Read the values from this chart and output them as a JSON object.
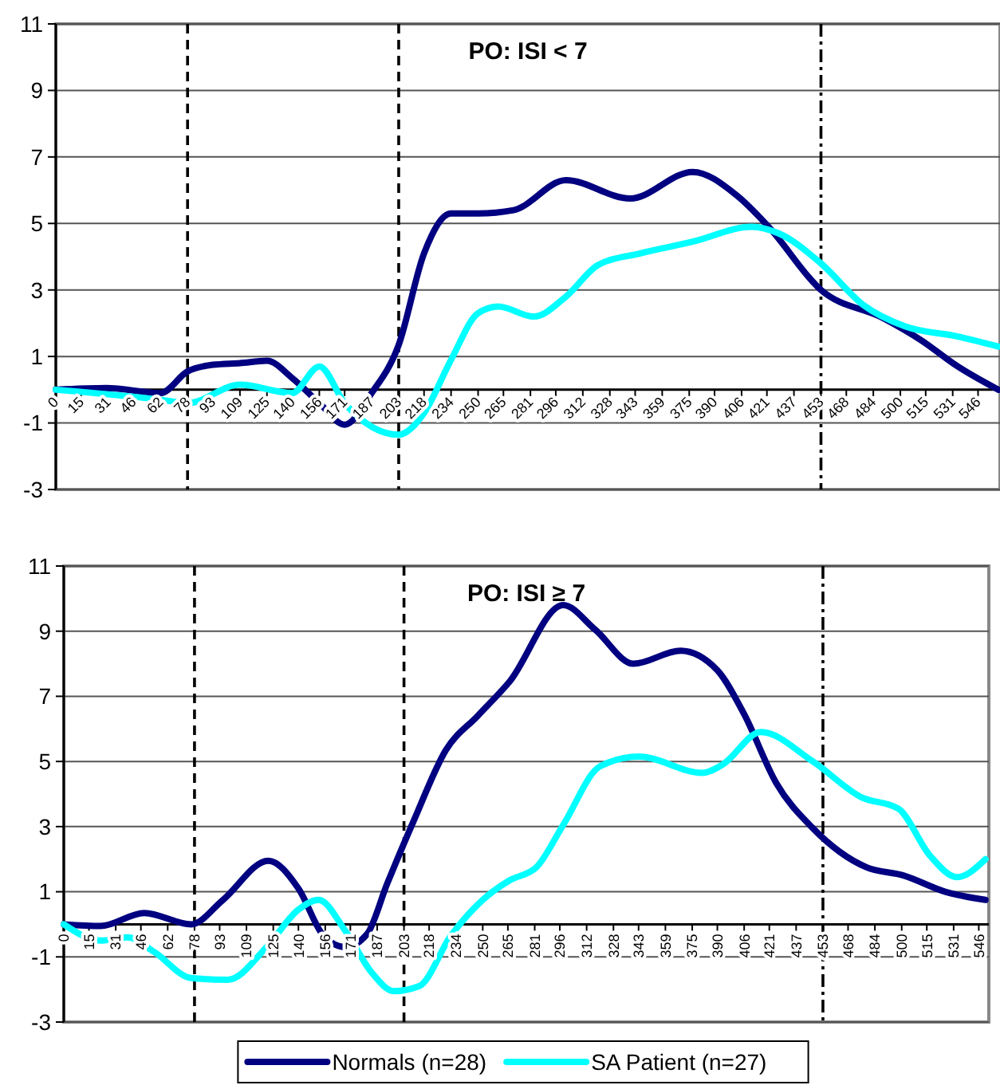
{
  "chart_data": [
    {
      "type": "line",
      "title": "PO:  ISI < 7",
      "xlim": [
        0,
        559
      ],
      "ylim": [
        -3,
        11
      ],
      "yticks": [
        -3,
        -1,
        1,
        3,
        5,
        7,
        9,
        11
      ],
      "grid": "y",
      "legend": "bottom",
      "line_style": "solid",
      "marker": "none",
      "xticks": [
        0,
        15,
        31,
        46,
        62,
        78,
        93,
        109,
        125,
        140,
        156,
        171,
        187,
        203,
        218,
        234,
        250,
        265,
        281,
        296,
        312,
        328,
        343,
        359,
        375,
        390,
        406,
        421,
        437,
        453,
        468,
        484,
        500,
        515,
        531,
        546
      ],
      "ref_lines": [
        {
          "axis": "x",
          "value": 78,
          "line_style": "dashed"
        },
        {
          "axis": "x",
          "value": 203,
          "line_style": "dashed"
        },
        {
          "axis": "x",
          "value": 453,
          "line_style": "dashdot"
        }
      ],
      "series": [
        {
          "name": "Normals (n=28)",
          "color": "#000080",
          "x": [
            0,
            30,
            62,
            78,
            93,
            109,
            125,
            140,
            156,
            171,
            187,
            203,
            218,
            234,
            250,
            271,
            302,
            340,
            377,
            403,
            422,
            453,
            490,
            512,
            534,
            558
          ],
          "values": [
            0,
            0.05,
            -0.1,
            0.55,
            0.75,
            0.8,
            0.87,
            0.35,
            -0.4,
            -1.05,
            -0.1,
            1.35,
            4.1,
            5.3,
            5.3,
            5.4,
            6.3,
            5.75,
            6.55,
            5.85,
            4.9,
            3.0,
            2.15,
            1.5,
            0.7,
            0
          ]
        },
        {
          "name": "SA Patient (n=27)",
          "color": "#00ffff",
          "x": [
            0,
            62,
            78,
            109,
            140,
            156,
            171,
            203,
            218,
            234,
            250,
            262,
            283,
            302,
            321,
            346,
            377,
            412,
            428,
            453,
            478,
            503,
            534,
            558
          ],
          "values": [
            0,
            -0.3,
            -0.4,
            0.15,
            -0.1,
            0.7,
            -0.4,
            -1.35,
            -0.7,
            0.9,
            2.3,
            2.5,
            2.2,
            2.8,
            3.75,
            4.1,
            4.45,
            4.9,
            4.7,
            3.8,
            2.55,
            1.9,
            1.6,
            1.3
          ]
        }
      ]
    },
    {
      "type": "line",
      "title": "PO:  ISI ≥ 7",
      "xlim": [
        0,
        552
      ],
      "ylim": [
        -3,
        11
      ],
      "yticks": [
        -3,
        -1,
        1,
        3,
        5,
        7,
        9,
        11
      ],
      "grid": "y",
      "legend": "bottom",
      "line_style": "solid",
      "marker": "none",
      "xticks": [
        0,
        15,
        31,
        46,
        62,
        78,
        93,
        109,
        125,
        140,
        156,
        171,
        187,
        203,
        218,
        234,
        250,
        265,
        281,
        296,
        312,
        328,
        343,
        359,
        375,
        390,
        406,
        421,
        437,
        453,
        468,
        484,
        500,
        515,
        531,
        546
      ],
      "ref_lines": [
        {
          "axis": "x",
          "value": 78,
          "line_style": "dashed"
        },
        {
          "axis": "x",
          "value": 203,
          "line_style": "dashed"
        },
        {
          "axis": "x",
          "value": 453,
          "line_style": "dashdot"
        }
      ],
      "series": [
        {
          "name": "Normals (n=28)",
          "color": "#000080",
          "x": [
            0,
            22,
            48,
            76,
            95,
            122,
            140,
            155,
            168,
            181,
            193,
            209,
            228,
            247,
            266,
            298,
            317,
            340,
            368,
            390,
            406,
            425,
            447,
            479,
            501,
            526,
            550
          ],
          "values": [
            0,
            -0.05,
            0.35,
            0,
            0.75,
            1.95,
            1.1,
            -0.35,
            -0.7,
            -0.3,
            1.25,
            3.2,
            5.35,
            6.4,
            7.45,
            9.8,
            9.05,
            8.0,
            8.4,
            7.8,
            6.45,
            4.35,
            2.95,
            1.75,
            1.5,
            1.0,
            0.75
          ]
        },
        {
          "name": "SA Patient (n=27)",
          "color": "#00ffff",
          "x": [
            0,
            22,
            38,
            54,
            76,
            98,
            121,
            140,
            152,
            168,
            184,
            197,
            212,
            231,
            250,
            266,
            282,
            298,
            320,
            343,
            381,
            393,
            416,
            447,
            476,
            498,
            517,
            533,
            550
          ],
          "values": [
            0,
            -0.5,
            -0.4,
            -0.85,
            -1.65,
            -1.7,
            -0.7,
            0.45,
            0.75,
            -0.2,
            -1.5,
            -2.05,
            -1.9,
            -0.35,
            0.75,
            1.35,
            1.75,
            3.05,
            4.85,
            5.15,
            4.65,
            4.9,
            5.9,
            5.0,
            3.9,
            3.55,
            2.1,
            1.45,
            2.0
          ]
        }
      ]
    }
  ]
}
